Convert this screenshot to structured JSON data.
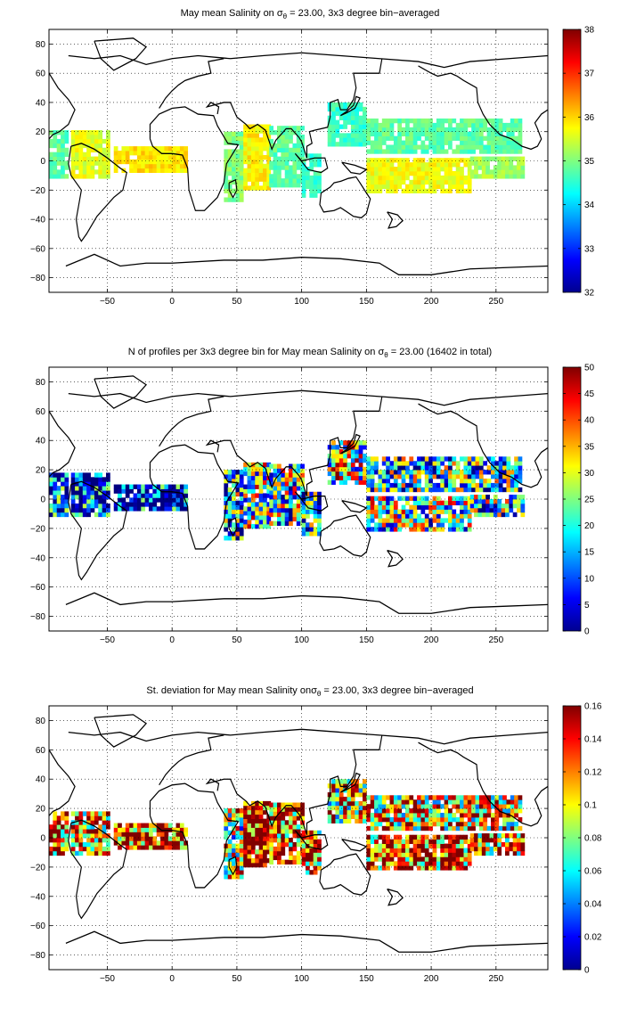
{
  "chart_data": [
    {
      "type": "heatmap",
      "title_parts": [
        "May mean Salinity on ",
        "σ",
        "θ",
        " = 23.00, 3x3 degree bin−averaged"
      ],
      "xlim": [
        -95,
        290
      ],
      "ylim": [
        -90,
        90
      ],
      "x_ticks": [
        -50,
        0,
        50,
        100,
        150,
        200,
        250
      ],
      "y_ticks": [
        -80,
        -60,
        -40,
        -20,
        0,
        20,
        40,
        60,
        80
      ],
      "grid": true,
      "colormap": "jet",
      "colorbar": {
        "range": [
          32,
          38
        ],
        "ticks": [
          32,
          33,
          34,
          35,
          36,
          37,
          38
        ]
      },
      "regions": [
        {
          "x": [
            -95,
            -80
          ],
          "y": [
            -12,
            20
          ],
          "value": 34.8
        },
        {
          "x": [
            -78,
            -50
          ],
          "y": [
            -12,
            20
          ],
          "value": 35.6
        },
        {
          "x": [
            -45,
            10
          ],
          "y": [
            -8,
            10
          ],
          "value": 35.9
        },
        {
          "x": [
            40,
            55
          ],
          "y": [
            -28,
            20
          ],
          "value": 35.0
        },
        {
          "x": [
            55,
            75
          ],
          "y": [
            -20,
            25
          ],
          "value": 35.8
        },
        {
          "x": [
            75,
            100
          ],
          "y": [
            -18,
            22
          ],
          "value": 34.8
        },
        {
          "x": [
            100,
            115
          ],
          "y": [
            -25,
            5
          ],
          "value": 34.6
        },
        {
          "x": [
            120,
            150
          ],
          "y": [
            10,
            38
          ],
          "value": 34.6
        },
        {
          "x": [
            150,
            270
          ],
          "y": [
            5,
            28
          ],
          "value": 34.8
        },
        {
          "x": [
            150,
            230
          ],
          "y": [
            -22,
            2
          ],
          "value": 35.7
        },
        {
          "x": [
            230,
            270
          ],
          "y": [
            -12,
            2
          ],
          "value": 35.2
        }
      ]
    },
    {
      "type": "heatmap",
      "title_parts": [
        "N of profiles per 3x3 degree bin for May mean Salinity on ",
        "σ",
        "θ",
        " = 23.00 (16402 in total)"
      ],
      "xlim": [
        -95,
        290
      ],
      "ylim": [
        -90,
        90
      ],
      "x_ticks": [
        -50,
        0,
        50,
        100,
        150,
        200,
        250
      ],
      "y_ticks": [
        -80,
        -60,
        -40,
        -20,
        0,
        20,
        40,
        60,
        80
      ],
      "grid": true,
      "colormap": "jet",
      "colorbar": {
        "range": [
          0,
          50
        ],
        "ticks": [
          0,
          5,
          10,
          15,
          20,
          25,
          30,
          35,
          40,
          45,
          50
        ]
      },
      "regions": [
        {
          "x": [
            -95,
            -80
          ],
          "y": [
            -12,
            18
          ],
          "value": 8
        },
        {
          "x": [
            -78,
            -50
          ],
          "y": [
            -12,
            18
          ],
          "value": 6
        },
        {
          "x": [
            -45,
            10
          ],
          "y": [
            -8,
            10
          ],
          "value": 5
        },
        {
          "x": [
            40,
            55
          ],
          "y": [
            -28,
            20
          ],
          "value": 18
        },
        {
          "x": [
            55,
            75
          ],
          "y": [
            -20,
            25
          ],
          "value": 25
        },
        {
          "x": [
            75,
            100
          ],
          "y": [
            -18,
            22
          ],
          "value": 22
        },
        {
          "x": [
            100,
            115
          ],
          "y": [
            -25,
            5
          ],
          "value": 15
        },
        {
          "x": [
            120,
            150
          ],
          "y": [
            10,
            38
          ],
          "value": 28
        },
        {
          "x": [
            150,
            270
          ],
          "y": [
            5,
            28
          ],
          "value": 18
        },
        {
          "x": [
            150,
            230
          ],
          "y": [
            -22,
            2
          ],
          "value": 24
        },
        {
          "x": [
            230,
            270
          ],
          "y": [
            -12,
            2
          ],
          "value": 20
        }
      ]
    },
    {
      "type": "heatmap",
      "title_parts": [
        "St. deviation for May mean Salinity on",
        "σ",
        "θ",
        " = 23.00, 3x3 degree bin−averaged"
      ],
      "xlim": [
        -95,
        290
      ],
      "ylim": [
        -90,
        90
      ],
      "x_ticks": [
        -50,
        0,
        50,
        100,
        150,
        200,
        250
      ],
      "y_ticks": [
        -80,
        -60,
        -40,
        -20,
        0,
        20,
        40,
        60,
        80
      ],
      "grid": true,
      "colormap": "jet",
      "colorbar": {
        "range": [
          0,
          0.16
        ],
        "ticks": [
          0,
          0.02,
          0.04,
          0.06,
          0.08,
          0.1,
          0.12,
          0.14,
          0.16
        ]
      },
      "regions": [
        {
          "x": [
            -95,
            -80
          ],
          "y": [
            -12,
            18
          ],
          "value": 0.13
        },
        {
          "x": [
            -78,
            -50
          ],
          "y": [
            -12,
            18
          ],
          "value": 0.12
        },
        {
          "x": [
            -45,
            10
          ],
          "y": [
            -8,
            10
          ],
          "value": 0.14
        },
        {
          "x": [
            40,
            55
          ],
          "y": [
            -28,
            20
          ],
          "value": 0.09
        },
        {
          "x": [
            55,
            75
          ],
          "y": [
            -20,
            25
          ],
          "value": 0.15
        },
        {
          "x": [
            75,
            100
          ],
          "y": [
            -18,
            22
          ],
          "value": 0.13
        },
        {
          "x": [
            100,
            115
          ],
          "y": [
            -25,
            5
          ],
          "value": 0.12
        },
        {
          "x": [
            120,
            150
          ],
          "y": [
            10,
            38
          ],
          "value": 0.1
        },
        {
          "x": [
            150,
            270
          ],
          "y": [
            5,
            28
          ],
          "value": 0.11
        },
        {
          "x": [
            150,
            230
          ],
          "y": [
            -22,
            2
          ],
          "value": 0.13
        },
        {
          "x": [
            230,
            270
          ],
          "y": [
            -12,
            2
          ],
          "value": 0.12
        }
      ]
    }
  ]
}
